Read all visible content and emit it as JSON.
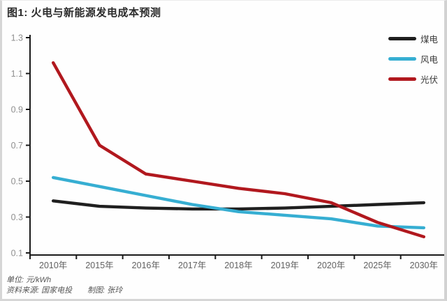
{
  "page": {
    "title": "图1: 火电与新能源发电成本预测"
  },
  "chart_data": {
    "type": "line",
    "title": "火电与新能源发电成本预测",
    "unit": "元/kWh",
    "categories": [
      "2010年",
      "2015年",
      "2016年",
      "2017年",
      "2018年",
      "2019年",
      "2020年",
      "2025年",
      "2030年"
    ],
    "series": [
      {
        "name": "煤电",
        "color": "#1f1f1f",
        "values": [
          0.39,
          0.36,
          0.35,
          0.345,
          0.345,
          0.35,
          0.36,
          0.37,
          0.38
        ]
      },
      {
        "name": "风电",
        "color": "#36aed2",
        "values": [
          0.52,
          0.47,
          0.42,
          0.37,
          0.33,
          0.31,
          0.29,
          0.25,
          0.24
        ]
      },
      {
        "name": "光伏",
        "color": "#b1181e",
        "values": [
          1.16,
          0.7,
          0.54,
          0.5,
          0.46,
          0.43,
          0.38,
          0.27,
          0.19
        ]
      }
    ],
    "ylim": [
      0.1,
      1.3
    ],
    "yticks": [
      0.1,
      0.3,
      0.5,
      0.7,
      0.9,
      1.1,
      1.3
    ],
    "xlabel": "",
    "ylabel": "",
    "grid": false,
    "legend_position": "top-right",
    "axis_color": "#1a1a1a",
    "ytick_label_color": "#8f8f8f",
    "xtick_label_color": "#616161"
  },
  "footer": {
    "unit_label": "单位: 元/kWh",
    "source_label": "资料来源: 国家电投",
    "credit_label": "制图: 张玲"
  }
}
